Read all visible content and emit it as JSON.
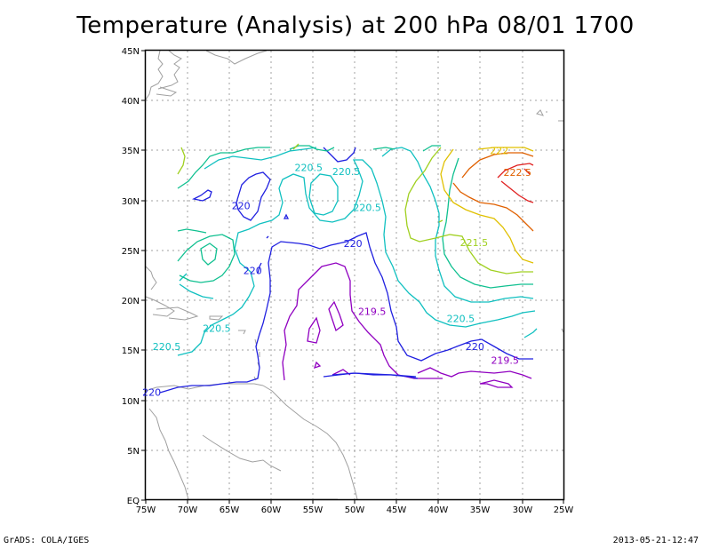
{
  "title": "Temperature (Analysis) at 200 hPa 08/01 1700",
  "footer": {
    "left": "GrADS: COLA/IGES",
    "right": "2013-05-21-12:47"
  },
  "axes": {
    "lat_labels": [
      "45N",
      "40N",
      "35N",
      "30N",
      "25N",
      "20N",
      "15N",
      "10N",
      "5N",
      "EQ"
    ],
    "lon_labels": [
      "75W",
      "70W",
      "65W",
      "60W",
      "55W",
      "50W",
      "45W",
      "40W",
      "35W",
      "30W",
      "25W"
    ]
  },
  "contour_labels": [
    {
      "text": "220.5",
      "lon": -51.0,
      "lat": 32.9,
      "color": "#10c0c0"
    },
    {
      "text": "220.5",
      "lon": -55.5,
      "lat": 33.3,
      "color": "#10c0c0"
    },
    {
      "text": "220.5",
      "lon": -48.5,
      "lat": 29.3,
      "color": "#10c0c0"
    },
    {
      "text": "220.5",
      "lon": -66.5,
      "lat": 17.2,
      "color": "#10c0c0"
    },
    {
      "text": "220.5",
      "lon": -72.5,
      "lat": 15.4,
      "color": "#10c0c0"
    },
    {
      "text": "220.5",
      "lon": -37.3,
      "lat": 18.2,
      "color": "#10c0c0"
    },
    {
      "text": "220",
      "lon": -63.6,
      "lat": 29.5,
      "color": "#2020e0"
    },
    {
      "text": "220",
      "lon": -62.2,
      "lat": 23.0,
      "color": "#2020e0"
    },
    {
      "text": "220",
      "lon": -50.2,
      "lat": 25.7,
      "color": "#2020e0"
    },
    {
      "text": "220",
      "lon": -35.6,
      "lat": 15.4,
      "color": "#2020e0"
    },
    {
      "text": "220",
      "lon": -74.3,
      "lat": 10.8,
      "color": "#2020e0"
    },
    {
      "text": "219.5",
      "lon": -47.9,
      "lat": 18.9,
      "color": "#9000c0"
    },
    {
      "text": "219.5",
      "lon": -32.0,
      "lat": 14.0,
      "color": "#9000c0"
    },
    {
      "text": "221.5",
      "lon": -35.7,
      "lat": 25.8,
      "color": "#a0d020"
    },
    {
      "text": "222.5",
      "lon": -30.5,
      "lat": 32.8,
      "color": "#e06000"
    },
    {
      "text": "222",
      "lon": -32.7,
      "lat": 35.0,
      "color": "#e0c000"
    }
  ],
  "colors": {
    "c219_5": "#9000c0",
    "c220": "#2020e0",
    "c220_5": "#10c0c0",
    "c221": "#10c090",
    "c221_5": "#a0d020",
    "c222": "#e0c000",
    "c222_5": "#e06000",
    "c223": "#e02020",
    "coast": "#a0a0a0",
    "grid": "#a0a0a0"
  }
}
